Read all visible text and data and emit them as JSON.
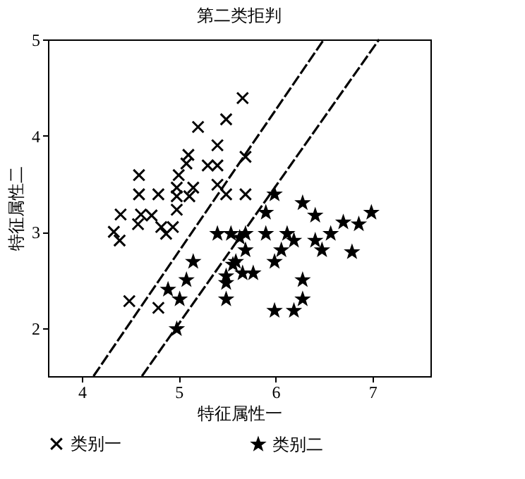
{
  "chart_data": {
    "type": "scatter",
    "title": "第二类拒判",
    "xlabel": "特征属性一",
    "ylabel": "特征属性二",
    "xlim": [
      3.65,
      7.6
    ],
    "ylim": [
      1.5,
      5
    ],
    "xticks": [
      4,
      5,
      6,
      7
    ],
    "yticks": [
      2,
      3,
      4,
      5
    ],
    "grid": false,
    "legend": "bottom",
    "series": [
      {
        "name": "类别一",
        "color": "#000000",
        "marker": "cross",
        "x": [
          5.66,
          5.49,
          5.2,
          5.4,
          5.1,
          5.69,
          5.08,
          5.3,
          5.4,
          4.59,
          5.0,
          4.59,
          4.79,
          4.98,
          5.15,
          4.98,
          5.4,
          5.49,
          5.69,
          5.11,
          4.4,
          4.61,
          4.72,
          4.98,
          4.82,
          4.94,
          4.87,
          4.33,
          4.39,
          4.58,
          4.49,
          4.79
        ],
        "values": [
          4.39,
          4.17,
          4.09,
          3.9,
          3.8,
          3.78,
          3.71,
          3.69,
          3.69,
          3.59,
          3.59,
          3.39,
          3.39,
          3.46,
          3.46,
          3.37,
          3.49,
          3.39,
          3.39,
          3.37,
          3.18,
          3.18,
          3.17,
          3.23,
          3.05,
          3.05,
          2.98,
          3.0,
          2.91,
          3.08,
          2.28,
          2.21
        ]
      },
      {
        "name": "类别二",
        "color": "#000000",
        "marker": "star",
        "x": [
          5.4,
          5.15,
          5.08,
          4.89,
          5.01,
          4.98,
          5.54,
          5.63,
          5.49,
          5.56,
          5.99,
          6.28,
          6.41,
          5.9,
          6.99,
          6.86,
          6.7,
          6.57,
          6.79,
          6.48,
          6.41,
          6.12,
          6.19,
          6.06,
          5.9,
          5.69,
          5.69,
          5.59,
          5.77,
          5.99,
          5.66,
          5.49,
          5.49,
          6.28,
          6.28,
          5.99,
          6.19
        ],
        "values": [
          2.98,
          2.69,
          2.5,
          2.4,
          2.3,
          1.99,
          2.98,
          2.94,
          2.54,
          2.66,
          3.39,
          3.3,
          3.17,
          3.2,
          3.2,
          3.08,
          3.1,
          2.98,
          2.79,
          2.81,
          2.91,
          2.98,
          2.91,
          2.81,
          2.98,
          2.98,
          2.81,
          2.69,
          2.57,
          2.69,
          2.57,
          2.47,
          2.3,
          2.5,
          2.3,
          2.18,
          2.18
        ]
      },
      {
        "type": "line",
        "color": "#000000",
        "line_style": "dashed",
        "x": [
          4.12,
          6.5
        ],
        "values": [
          1.5,
          5
        ]
      },
      {
        "type": "line",
        "color": "#000000",
        "line_style": "dashed",
        "x": [
          4.62,
          7.07
        ],
        "values": [
          1.5,
          5
        ]
      }
    ]
  }
}
